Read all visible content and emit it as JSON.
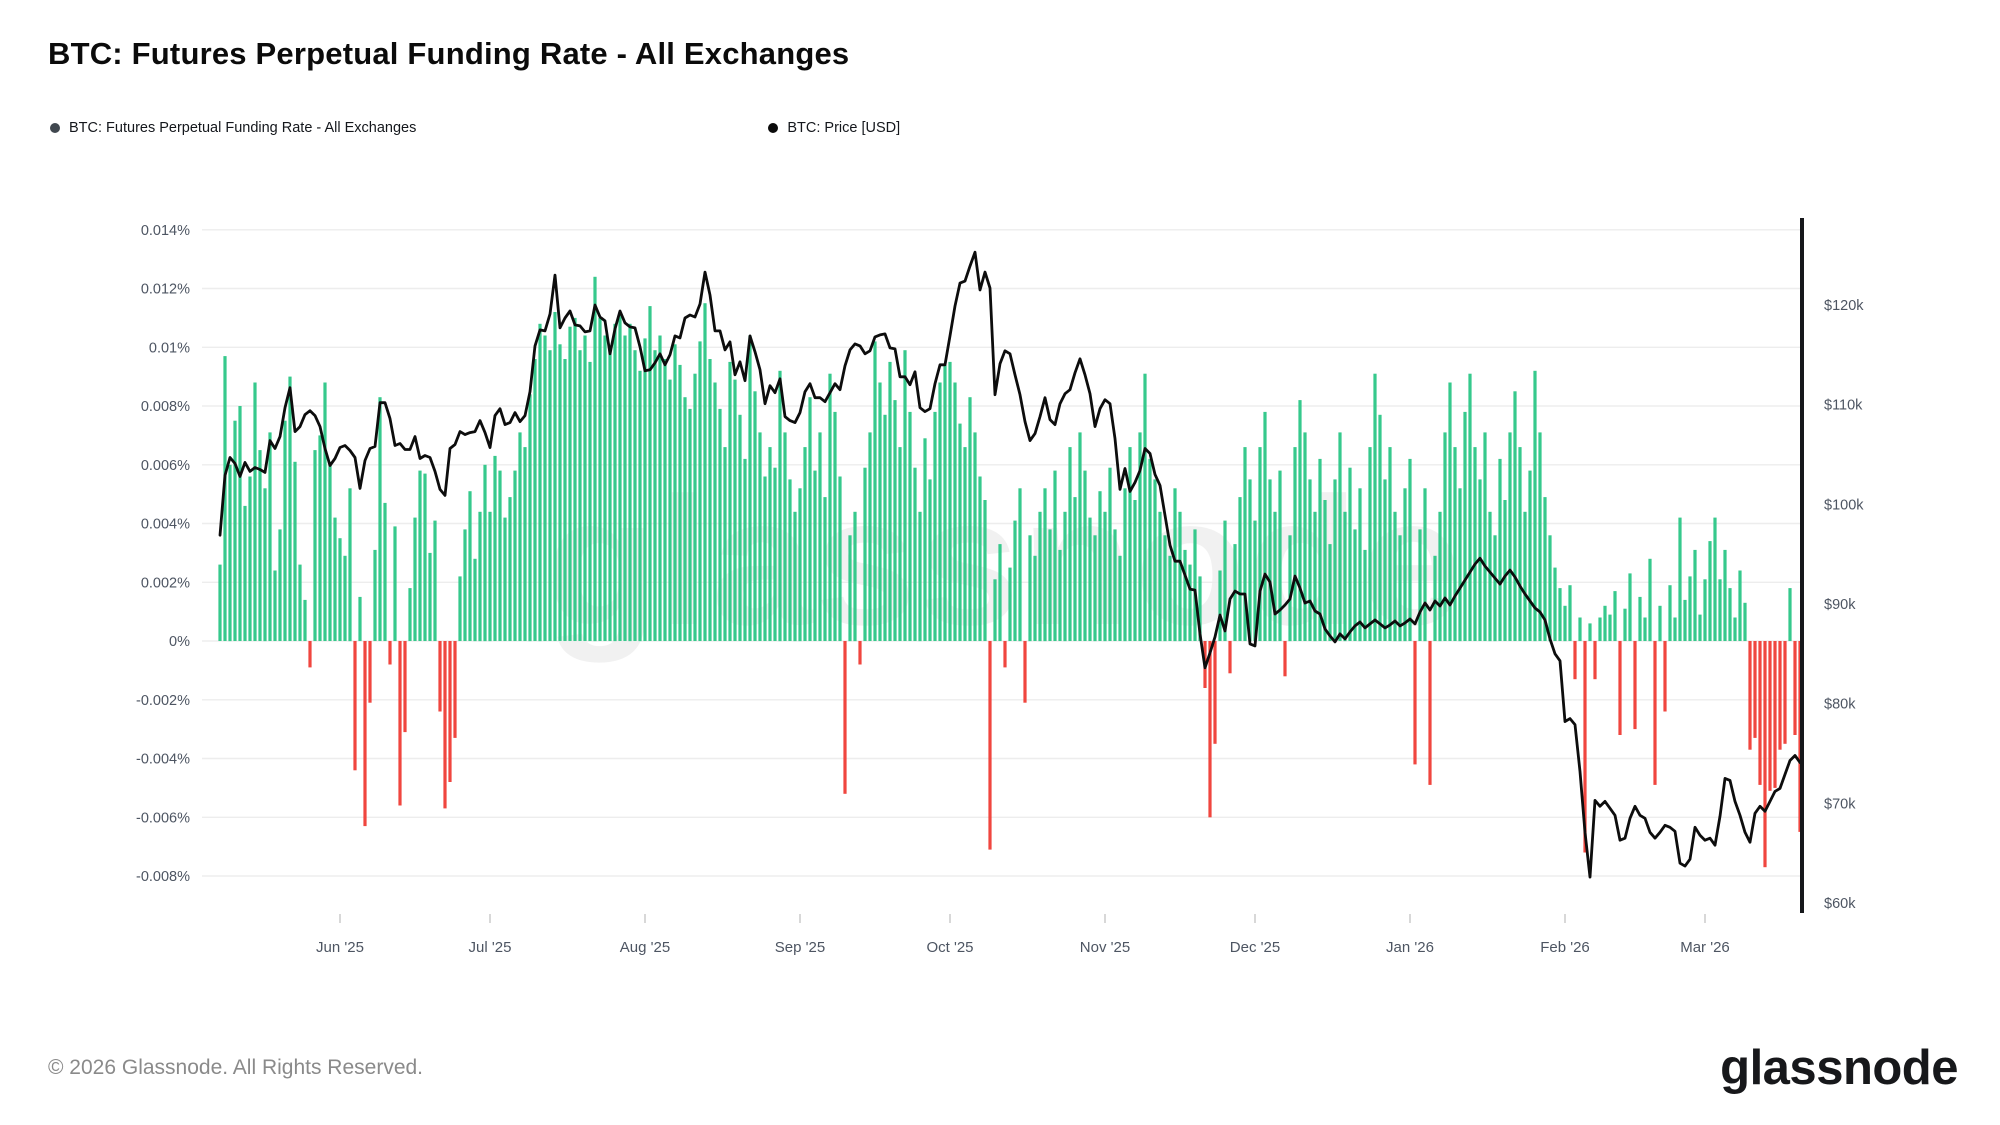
{
  "header": {
    "title": "BTC: Futures Perpetual Funding Rate - All Exchanges",
    "legend": [
      {
        "label": "BTC: Futures Perpetual Funding Rate - All Exchanges",
        "dot_color": "#40474f"
      },
      {
        "label": "BTC: Price [USD]",
        "dot_color": "#0b0b0b"
      }
    ]
  },
  "watermark_text": "glassnode",
  "footer": {
    "copyright": "© 2026 Glassnode. All Rights Reserved.",
    "brand": "glassnode"
  },
  "colors": {
    "bar_positive": "#36c98c",
    "bar_negative": "#f0463f",
    "price_line": "#0d0d0d",
    "grid_line": "#ededed",
    "axis_line": "#16181b",
    "tick_text": "#4d5562",
    "month_tick": "#cfcfcf"
  },
  "chart_data": {
    "type": "combo",
    "title": "BTC: Futures Perpetual Funding Rate - All Exchanges",
    "frequency": "daily",
    "start_date": "2025-05-08",
    "grid": "horizontal-only",
    "left_axis": {
      "name": "funding rate",
      "unit": "%",
      "range": [
        -0.008,
        0.014
      ],
      "tick_labels": [
        "0.014%",
        "0.012%",
        "0.01%",
        "0.008%",
        "0.006%",
        "0.004%",
        "0.002%",
        "0%",
        "-0.002%",
        "-0.004%",
        "-0.006%",
        "-0.008%"
      ],
      "tick_values": [
        0.014,
        0.012,
        0.01,
        0.008,
        0.006,
        0.004,
        0.002,
        0,
        -0.002,
        -0.004,
        -0.006,
        -0.008
      ]
    },
    "right_axis": {
      "name": "BTC price",
      "unit": "USD",
      "tick_labels": [
        "$120k",
        "$110k",
        "$100k",
        "$90k",
        "$80k",
        "$70k",
        "$60k"
      ],
      "tick_values": [
        120,
        110,
        100,
        90,
        80,
        70,
        60
      ]
    },
    "x_axis": {
      "month_labels": [
        "Jun '25",
        "Jul '25",
        "Aug '25",
        "Sep '25",
        "Oct '25",
        "Nov '25",
        "Dec '25",
        "Jan '26",
        "Feb '26",
        "Mar '26"
      ],
      "month_first_day_index": [
        24,
        54,
        85,
        116,
        146,
        177,
        207,
        238,
        269,
        297
      ]
    },
    "series": [
      {
        "name": "BTC: Futures Perpetual Funding Rate - All Exchanges",
        "type": "bar",
        "unit": "%",
        "values": [
          0.0026,
          0.0097,
          0.006,
          0.0075,
          0.008,
          0.0046,
          0.0056,
          0.0088,
          0.0065,
          0.0052,
          0.0071,
          0.0024,
          0.0038,
          0.0075,
          0.009,
          0.0061,
          0.0026,
          0.0014,
          -0.0009,
          0.0065,
          0.007,
          0.0088,
          0.0061,
          0.0042,
          0.0035,
          0.0029,
          0.0052,
          -0.0044,
          0.0015,
          -0.0063,
          -0.0021,
          0.0031,
          0.0083,
          0.0047,
          -0.0008,
          0.0039,
          -0.0056,
          -0.0031,
          0.0018,
          0.0042,
          0.0058,
          0.0057,
          0.003,
          0.0041,
          -0.0024,
          -0.0057,
          -0.0048,
          -0.0033,
          0.0022,
          0.0038,
          0.0051,
          0.0028,
          0.0044,
          0.006,
          0.0044,
          0.0063,
          0.0058,
          0.0042,
          0.0049,
          0.0058,
          0.0071,
          0.0066,
          0.0084,
          0.0096,
          0.0108,
          0.0104,
          0.0099,
          0.0112,
          0.0101,
          0.0096,
          0.0107,
          0.011,
          0.0099,
          0.0104,
          0.0095,
          0.0124,
          0.011,
          0.0104,
          0.0099,
          0.0108,
          0.0112,
          0.0104,
          0.0108,
          0.0099,
          0.0092,
          0.0103,
          0.0114,
          0.0099,
          0.0104,
          0.0096,
          0.0089,
          0.0101,
          0.0094,
          0.0083,
          0.0079,
          0.0091,
          0.0102,
          0.0115,
          0.0096,
          0.0088,
          0.0079,
          0.0066,
          0.0095,
          0.0089,
          0.0077,
          0.0062,
          0.0104,
          0.0085,
          0.0071,
          0.0056,
          0.0066,
          0.0059,
          0.0092,
          0.0071,
          0.0055,
          0.0044,
          0.0052,
          0.0066,
          0.0083,
          0.0058,
          0.0071,
          0.0049,
          0.0091,
          0.0078,
          0.0056,
          -0.0052,
          0.0036,
          0.0044,
          -0.0008,
          0.0059,
          0.0071,
          0.0102,
          0.0088,
          0.0077,
          0.0095,
          0.0082,
          0.0066,
          0.0099,
          0.0078,
          0.0059,
          0.0044,
          0.0069,
          0.0055,
          0.0078,
          0.0088,
          0.0094,
          0.0095,
          0.0088,
          0.0074,
          0.0066,
          0.0083,
          0.0071,
          0.0056,
          0.0048,
          -0.0071,
          0.0021,
          0.0033,
          -0.0009,
          0.0025,
          0.0041,
          0.0052,
          -0.0021,
          0.0036,
          0.0029,
          0.0044,
          0.0052,
          0.0038,
          0.0058,
          0.0031,
          0.0044,
          0.0066,
          0.0049,
          0.0071,
          0.0058,
          0.0042,
          0.0036,
          0.0051,
          0.0044,
          0.0059,
          0.0038,
          0.0029,
          0.0052,
          0.0066,
          0.0048,
          0.0071,
          0.0091,
          0.0062,
          0.0055,
          0.0044,
          0.0036,
          0.0029,
          0.0052,
          0.0044,
          0.0031,
          0.0026,
          0.0038,
          0.0022,
          -0.0016,
          -0.006,
          -0.0035,
          0.0024,
          0.0041,
          -0.0011,
          0.0033,
          0.0049,
          0.0066,
          0.0055,
          0.0041,
          0.0066,
          0.0078,
          0.0055,
          0.0044,
          0.0058,
          -0.0012,
          0.0036,
          0.0066,
          0.0082,
          0.0071,
          0.0055,
          0.0044,
          0.0062,
          0.0048,
          0.0033,
          0.0055,
          0.0071,
          0.0044,
          0.0059,
          0.0038,
          0.0052,
          0.0031,
          0.0066,
          0.0091,
          0.0077,
          0.0055,
          0.0066,
          0.0044,
          0.0036,
          0.0052,
          0.0062,
          -0.0042,
          0.0038,
          0.0052,
          -0.0049,
          0.0029,
          0.0044,
          0.0071,
          0.0088,
          0.0066,
          0.0052,
          0.0078,
          0.0091,
          0.0066,
          0.0055,
          0.0071,
          0.0044,
          0.0036,
          0.0062,
          0.0048,
          0.0071,
          0.0085,
          0.0066,
          0.0044,
          0.0058,
          0.0092,
          0.0071,
          0.0049,
          0.0036,
          0.0025,
          0.0018,
          0.0012,
          0.0019,
          -0.0013,
          0.0008,
          -0.0072,
          0.0006,
          -0.0013,
          0.0008,
          0.0012,
          0.0009,
          0.0017,
          -0.0032,
          0.0011,
          0.0023,
          -0.003,
          0.0015,
          0.0008,
          0.0028,
          -0.0049,
          0.0012,
          -0.0024,
          0.0019,
          0.0008,
          0.0042,
          0.0014,
          0.0022,
          0.0031,
          0.0009,
          0.0021,
          0.0034,
          0.0042,
          0.0021,
          0.0031,
          0.0018,
          0.0008,
          0.0024,
          0.0013,
          -0.0037,
          -0.0033,
          -0.0049,
          -0.0077,
          -0.0051,
          -0.005,
          -0.0037,
          -0.0035,
          0.0018,
          -0.0032,
          -0.0065
        ]
      },
      {
        "name": "BTC: Price [USD]",
        "type": "line",
        "unit": "$k",
        "values": [
          96.9,
          102.9,
          104.7,
          104.1,
          102.8,
          104.2,
          103.3,
          103.7,
          103.5,
          103.2,
          106.4,
          105.6,
          106.8,
          109.7,
          111.7,
          107.3,
          107.8,
          109.0,
          109.4,
          108.9,
          107.8,
          105.6,
          103.9,
          104.6,
          105.7,
          105.9,
          105.4,
          104.7,
          101.6,
          104.4,
          105.6,
          105.8,
          110.2,
          110.2,
          108.6,
          105.9,
          106.1,
          105.5,
          105.5,
          106.8,
          104.6,
          104.9,
          104.7,
          103.3,
          101.5,
          100.9,
          105.6,
          106.0,
          107.3,
          107.0,
          107.2,
          107.3,
          108.4,
          107.2,
          105.7,
          108.9,
          109.6,
          108.0,
          108.2,
          109.2,
          108.3,
          108.9,
          111.3,
          115.9,
          117.5,
          117.4,
          119.1,
          123.0,
          117.7,
          118.7,
          119.4,
          118.0,
          117.9,
          117.3,
          117.4,
          120.0,
          118.8,
          118.4,
          115.1,
          117.6,
          119.4,
          118.2,
          117.8,
          117.7,
          115.8,
          113.4,
          113.5,
          114.2,
          115.1,
          114.0,
          115.0,
          116.9,
          116.7,
          118.7,
          119.0,
          118.8,
          120.1,
          123.3,
          121.0,
          117.4,
          117.4,
          115.5,
          116.3,
          113.0,
          114.3,
          112.4,
          116.9,
          115.3,
          113.5,
          110.1,
          111.9,
          111.2,
          112.6,
          108.8,
          108.4,
          108.2,
          109.2,
          111.3,
          112.1,
          110.7,
          110.7,
          110.3,
          111.2,
          112.1,
          111.5,
          113.9,
          115.5,
          116.1,
          115.9,
          115.1,
          115.4,
          116.8,
          117.0,
          117.1,
          115.7,
          115.6,
          112.8,
          112.8,
          112.0,
          113.3,
          109.7,
          109.3,
          109.6,
          112.1,
          114.0,
          114.0,
          116.9,
          119.9,
          122.2,
          122.4,
          123.9,
          125.3,
          121.5,
          123.3,
          121.7,
          111.0,
          114.1,
          115.4,
          115.1,
          113.0,
          111.0,
          108.3,
          106.4,
          107.1,
          108.8,
          110.7,
          108.5,
          108.0,
          110.1,
          111.1,
          111.5,
          113.2,
          114.6,
          113.0,
          111.1,
          107.8,
          109.6,
          110.5,
          110.1,
          106.6,
          101.5,
          103.6,
          101.3,
          102.2,
          103.4,
          105.6,
          105.1,
          103.0,
          101.9,
          98.9,
          95.9,
          94.3,
          94.3,
          92.9,
          91.5,
          91.4,
          87.0,
          83.6,
          85.1,
          86.7,
          88.9,
          87.3,
          90.5,
          91.3,
          91.0,
          91.0,
          86.0,
          85.8,
          91.3,
          93.0,
          92.2,
          89.0,
          89.4,
          89.9,
          90.5,
          92.8,
          91.6,
          90.1,
          90.3,
          89.3,
          89.0,
          87.5,
          86.8,
          86.2,
          87.0,
          86.5,
          87.2,
          87.8,
          88.2,
          87.6,
          88.0,
          88.4,
          88.0,
          87.6,
          87.9,
          88.3,
          87.8,
          88.1,
          88.5,
          88.0,
          89.2,
          90.1,
          89.4,
          90.3,
          89.8,
          90.6,
          89.9,
          90.8,
          91.6,
          92.4,
          93.2,
          94.0,
          94.6,
          93.8,
          93.2,
          92.6,
          92.0,
          92.8,
          93.4,
          92.7,
          91.8,
          91.0,
          90.3,
          89.6,
          89.2,
          88.4,
          86.5,
          85.0,
          84.3,
          78.2,
          78.5,
          77.9,
          73.2,
          67.1,
          62.6,
          70.3,
          69.7,
          70.2,
          69.5,
          68.8,
          66.3,
          66.5,
          68.5,
          69.7,
          68.8,
          68.5,
          67.1,
          66.5,
          67.1,
          67.8,
          67.6,
          67.2,
          64.0,
          63.7,
          64.4,
          67.6,
          66.8,
          66.3,
          66.5,
          65.8,
          68.7,
          72.5,
          72.3,
          70.2,
          68.8,
          67.1,
          66.1,
          69.0,
          69.7,
          69.2,
          70.2,
          71.2,
          71.5,
          72.9,
          74.3,
          74.8,
          74.1
        ]
      }
    ]
  }
}
